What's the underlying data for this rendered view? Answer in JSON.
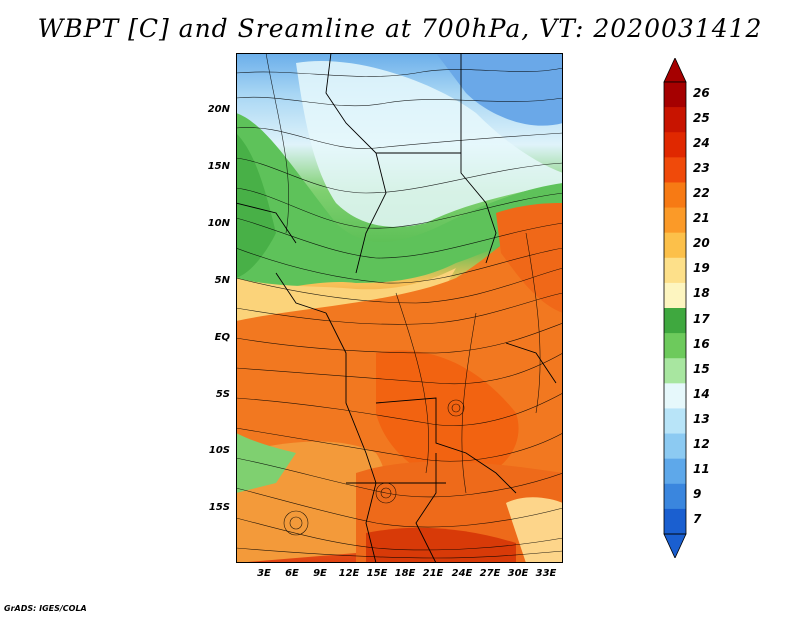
{
  "title": "WBPT [C] and Sreamline at 700hPa, VT: 2020031412",
  "credit": "GrADS: IGES/COLA",
  "lat_labels": [
    "20N",
    "15N",
    "10N",
    "5N",
    "EQ",
    "5S",
    "10S",
    "15S"
  ],
  "lon_labels": [
    "3E",
    "6E",
    "9E",
    "12E",
    "15E",
    "18E",
    "21E",
    "24E",
    "27E",
    "30E",
    "33E"
  ],
  "colorbar": {
    "levels": [
      "26",
      "25",
      "24",
      "23",
      "22",
      "21",
      "20",
      "19",
      "18",
      "17",
      "16",
      "15",
      "14",
      "13",
      "12",
      "11",
      "9",
      "7"
    ],
    "colors": [
      "#a50000",
      "#c81400",
      "#e02800",
      "#f04a0a",
      "#f77a14",
      "#fb9a28",
      "#fcc04a",
      "#fde08a",
      "#fdf5c0",
      "#3fa83f",
      "#6dca5c",
      "#a8e6a0",
      "#e6f8fb",
      "#b8e4f8",
      "#8ccaf2",
      "#5ea8ea",
      "#3a86de",
      "#1a5fd0"
    ]
  },
  "palette": {
    "cold_top": "#8ec4f0",
    "green": "#5fc05a",
    "warm": "#f07a20",
    "hot": "#e04a0a"
  }
}
